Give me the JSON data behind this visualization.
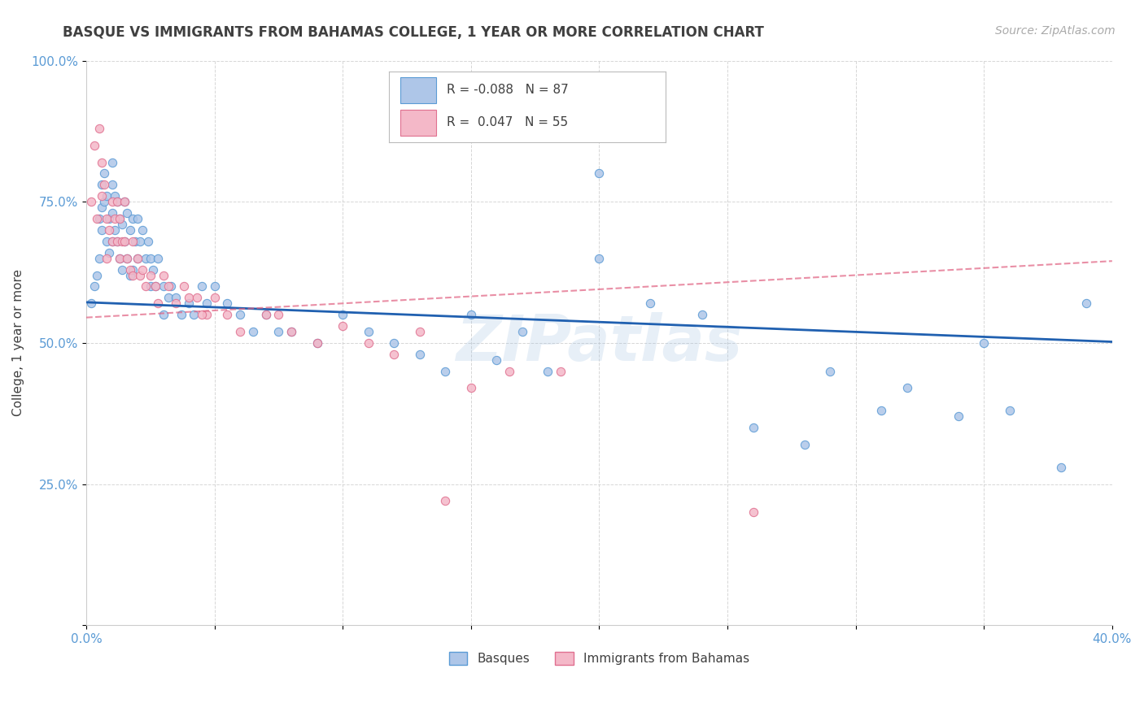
{
  "title": "BASQUE VS IMMIGRANTS FROM BAHAMAS COLLEGE, 1 YEAR OR MORE CORRELATION CHART",
  "source": "Source: ZipAtlas.com",
  "ylabel": "College, 1 year or more",
  "xlim": [
    0.0,
    0.4
  ],
  "ylim": [
    0.0,
    1.0
  ],
  "xticks": [
    0.0,
    0.05,
    0.1,
    0.15,
    0.2,
    0.25,
    0.3,
    0.35,
    0.4
  ],
  "xticklabels": [
    "0.0%",
    "",
    "",
    "",
    "",
    "",
    "",
    "",
    "40.0%"
  ],
  "yticks": [
    0.0,
    0.25,
    0.5,
    0.75,
    1.0
  ],
  "yticklabels": [
    "",
    "25.0%",
    "50.0%",
    "75.0%",
    "100.0%"
  ],
  "series1_color": "#aec6e8",
  "series1_edge": "#5b9bd5",
  "series2_color": "#f4b8c8",
  "series2_edge": "#e07090",
  "trendline1_color": "#2060b0",
  "trendline2_color": "#e06080",
  "R1": -0.088,
  "N1": 87,
  "R2": 0.047,
  "N2": 55,
  "legend_label1": "Basques",
  "legend_label2": "Immigrants from Bahamas",
  "watermark": "ZIPatlas",
  "background_color": "#ffffff",
  "grid_color": "#cccccc",
  "axis_label_color": "#5b9bd5",
  "title_color": "#404040",
  "blue_intercept": 0.572,
  "blue_slope": -0.175,
  "pink_intercept": 0.545,
  "pink_slope": 0.25,
  "blue_points_x": [
    0.002,
    0.003,
    0.004,
    0.005,
    0.005,
    0.006,
    0.006,
    0.006,
    0.007,
    0.007,
    0.008,
    0.008,
    0.009,
    0.009,
    0.01,
    0.01,
    0.01,
    0.01,
    0.011,
    0.011,
    0.012,
    0.012,
    0.013,
    0.013,
    0.014,
    0.014,
    0.015,
    0.015,
    0.016,
    0.016,
    0.017,
    0.017,
    0.018,
    0.018,
    0.019,
    0.02,
    0.02,
    0.021,
    0.022,
    0.023,
    0.024,
    0.025,
    0.025,
    0.026,
    0.027,
    0.028,
    0.03,
    0.03,
    0.032,
    0.033,
    0.035,
    0.037,
    0.04,
    0.042,
    0.045,
    0.047,
    0.05,
    0.055,
    0.06,
    0.065,
    0.07,
    0.075,
    0.08,
    0.09,
    0.1,
    0.11,
    0.12,
    0.13,
    0.14,
    0.16,
    0.18,
    0.2,
    0.22,
    0.24,
    0.26,
    0.29,
    0.31,
    0.34,
    0.36,
    0.38,
    0.2,
    0.15,
    0.17,
    0.28,
    0.32,
    0.35,
    0.39
  ],
  "blue_points_y": [
    0.57,
    0.6,
    0.62,
    0.72,
    0.65,
    0.78,
    0.74,
    0.7,
    0.8,
    0.75,
    0.76,
    0.68,
    0.72,
    0.66,
    0.82,
    0.78,
    0.73,
    0.68,
    0.76,
    0.7,
    0.75,
    0.68,
    0.72,
    0.65,
    0.71,
    0.63,
    0.75,
    0.68,
    0.73,
    0.65,
    0.7,
    0.62,
    0.72,
    0.63,
    0.68,
    0.72,
    0.65,
    0.68,
    0.7,
    0.65,
    0.68,
    0.65,
    0.6,
    0.63,
    0.6,
    0.65,
    0.6,
    0.55,
    0.58,
    0.6,
    0.58,
    0.55,
    0.57,
    0.55,
    0.6,
    0.57,
    0.6,
    0.57,
    0.55,
    0.52,
    0.55,
    0.52,
    0.52,
    0.5,
    0.55,
    0.52,
    0.5,
    0.48,
    0.45,
    0.47,
    0.45,
    0.8,
    0.57,
    0.55,
    0.35,
    0.45,
    0.38,
    0.37,
    0.38,
    0.28,
    0.65,
    0.55,
    0.52,
    0.32,
    0.42,
    0.5,
    0.57
  ],
  "pink_points_x": [
    0.002,
    0.003,
    0.004,
    0.005,
    0.006,
    0.006,
    0.007,
    0.008,
    0.008,
    0.009,
    0.01,
    0.01,
    0.011,
    0.012,
    0.012,
    0.013,
    0.013,
    0.014,
    0.015,
    0.015,
    0.016,
    0.017,
    0.018,
    0.018,
    0.02,
    0.021,
    0.022,
    0.023,
    0.025,
    0.027,
    0.03,
    0.032,
    0.035,
    0.038,
    0.04,
    0.043,
    0.047,
    0.05,
    0.055,
    0.06,
    0.07,
    0.08,
    0.09,
    0.1,
    0.11,
    0.12,
    0.13,
    0.15,
    0.165,
    0.185,
    0.26,
    0.028,
    0.045,
    0.075,
    0.14
  ],
  "pink_points_y": [
    0.75,
    0.85,
    0.72,
    0.88,
    0.82,
    0.76,
    0.78,
    0.72,
    0.65,
    0.7,
    0.75,
    0.68,
    0.72,
    0.75,
    0.68,
    0.72,
    0.65,
    0.68,
    0.75,
    0.68,
    0.65,
    0.63,
    0.68,
    0.62,
    0.65,
    0.62,
    0.63,
    0.6,
    0.62,
    0.6,
    0.62,
    0.6,
    0.57,
    0.6,
    0.58,
    0.58,
    0.55,
    0.58,
    0.55,
    0.52,
    0.55,
    0.52,
    0.5,
    0.53,
    0.5,
    0.48,
    0.52,
    0.42,
    0.45,
    0.45,
    0.2,
    0.57,
    0.55,
    0.55,
    0.22
  ]
}
